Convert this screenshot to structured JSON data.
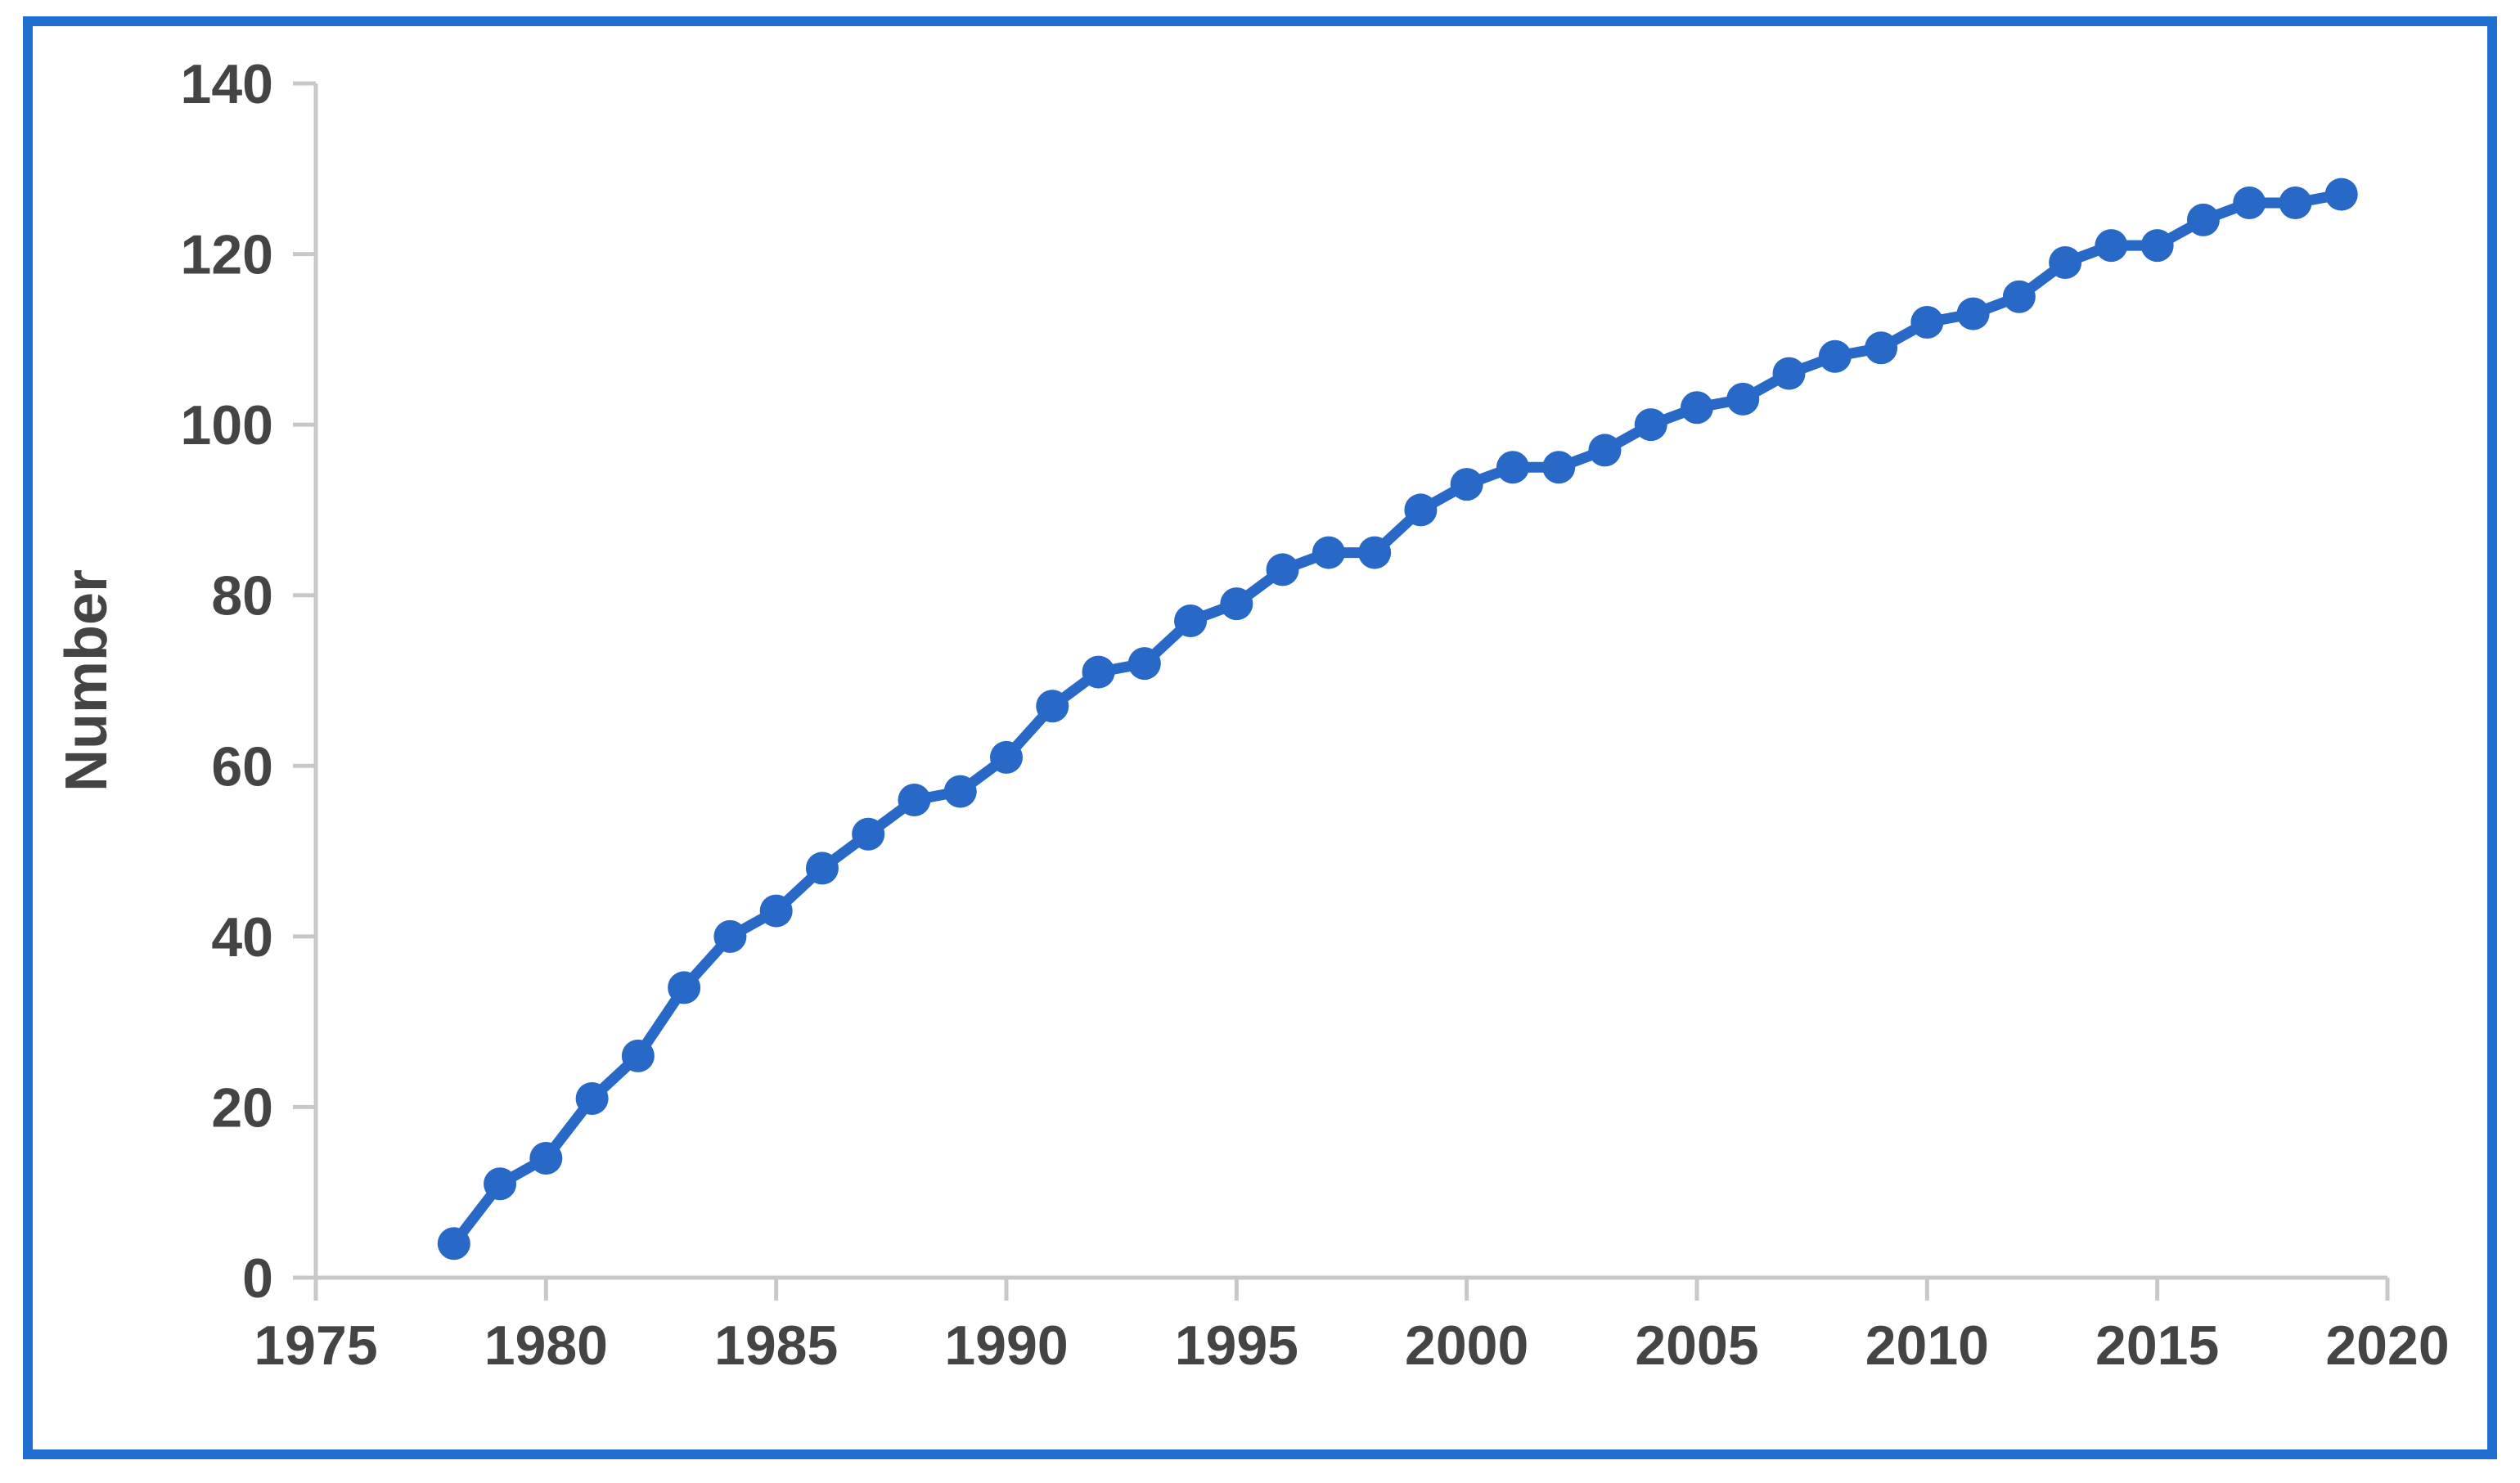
{
  "chart_data": {
    "type": "line",
    "title": "",
    "xlabel": "",
    "ylabel": "Number",
    "xlim": [
      1975,
      2020
    ],
    "ylim": [
      0,
      140
    ],
    "x_ticks": [
      1975,
      1980,
      1985,
      1990,
      1995,
      2000,
      2005,
      2010,
      2015,
      2020
    ],
    "y_ticks": [
      0,
      20,
      40,
      60,
      80,
      100,
      120,
      140
    ],
    "grid": false,
    "legend": "none",
    "colors": {
      "series": "#2868c6",
      "frame": "#1f6fd1",
      "axis": "#c8c8c8",
      "text": "#444444"
    },
    "series": [
      {
        "x": [
          1978,
          1979,
          1980,
          1981,
          1982,
          1983,
          1984,
          1985,
          1986,
          1987,
          1988,
          1989,
          1990,
          1991,
          1992,
          1993,
          1994,
          1995,
          1996,
          1997,
          1998,
          1999,
          2000,
          2001,
          2002,
          2003,
          2004,
          2005,
          2006,
          2007,
          2008,
          2009,
          2010,
          2011,
          2012,
          2013,
          2014,
          2015,
          2016,
          2017,
          2018,
          2019
        ],
        "y": [
          4,
          11,
          14,
          21,
          26,
          34,
          40,
          43,
          48,
          52,
          56,
          57,
          61,
          67,
          71,
          72,
          77,
          79,
          83,
          85,
          85,
          90,
          93,
          95,
          95,
          97,
          100,
          102,
          103,
          106,
          108,
          109,
          112,
          113,
          115,
          119,
          121,
          121,
          124,
          126,
          126,
          127
        ]
      }
    ]
  }
}
